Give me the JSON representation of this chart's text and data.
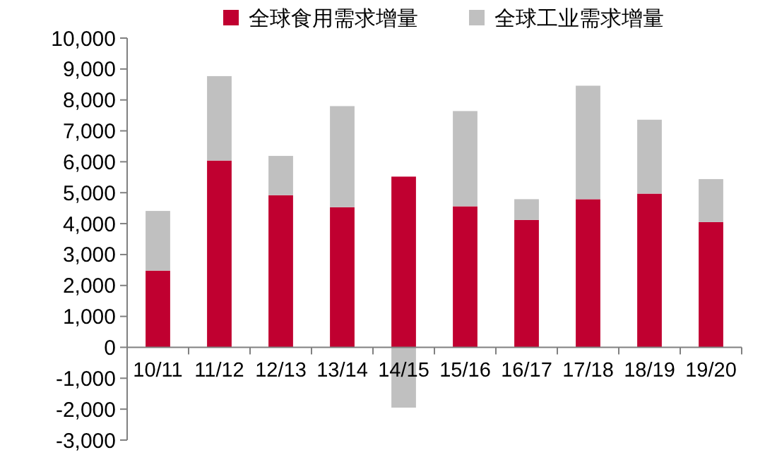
{
  "chart_data": {
    "type": "bar",
    "stacked": true,
    "categories": [
      "10/11",
      "11/12",
      "12/13",
      "13/14",
      "14/15",
      "15/16",
      "16/17",
      "17/18",
      "18/19",
      "19/20"
    ],
    "series": [
      {
        "name": "全球食用需求增量",
        "color": "#c00030",
        "values": [
          2480,
          6040,
          4920,
          4530,
          5520,
          4560,
          4120,
          4790,
          4970,
          4050
        ]
      },
      {
        "name": "全球工业需求增量",
        "color": "#c0c0c0",
        "values": [
          1930,
          2730,
          1270,
          3270,
          -1950,
          3080,
          670,
          3670,
          2390,
          1390
        ]
      }
    ],
    "ylim": [
      -3000,
      10000
    ],
    "yticks": [
      {
        "value": -3000,
        "label": "-3,000"
      },
      {
        "value": -2000,
        "label": "-2,000"
      },
      {
        "value": -1000,
        "label": "-1,000"
      },
      0,
      {
        "value": 1000,
        "label": "1,000"
      },
      {
        "value": 2000,
        "label": "2,000"
      },
      {
        "value": 3000,
        "label": "3,000"
      },
      {
        "value": 4000,
        "label": "4,000"
      },
      {
        "value": 5000,
        "label": "5,000"
      },
      {
        "value": 6000,
        "label": "6,000"
      },
      {
        "value": 7000,
        "label": "7,000"
      },
      {
        "value": 8000,
        "label": "8,000"
      },
      {
        "value": 9000,
        "label": "9,000"
      },
      {
        "value": 10000,
        "label": "10,000"
      }
    ],
    "legend": "top",
    "grid": false
  }
}
